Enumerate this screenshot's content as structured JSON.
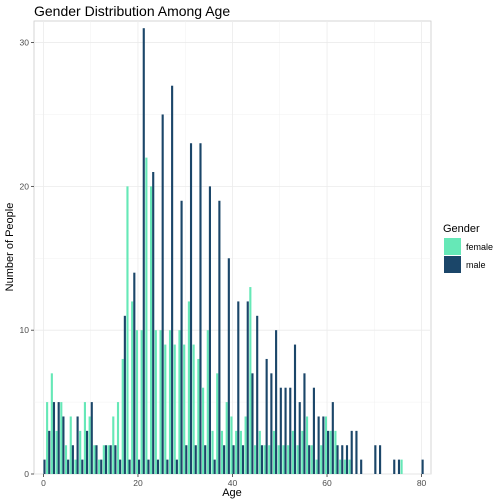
{
  "chart_data": {
    "type": "bar",
    "title": "Gender Distribution Among Age",
    "xlabel": "Age",
    "ylabel": "Number of People",
    "xlim": [
      -2,
      82
    ],
    "ylim": [
      0,
      31.5
    ],
    "x_ticks": [
      "0",
      "20",
      "40",
      "60",
      "80"
    ],
    "y_ticks": [
      "0",
      "10",
      "20",
      "30"
    ],
    "grid": true,
    "legend_position": "right",
    "legend_title": "Gender",
    "series": [
      {
        "name": "female",
        "color": "#66e8b7",
        "points": [
          [
            1,
            5
          ],
          [
            2,
            7
          ],
          [
            3,
            3
          ],
          [
            4,
            5
          ],
          [
            5,
            2
          ],
          [
            6,
            4
          ],
          [
            7,
            1
          ],
          [
            8,
            3
          ],
          [
            9,
            5
          ],
          [
            10,
            4
          ],
          [
            11,
            2
          ],
          [
            12,
            1
          ],
          [
            13,
            2
          ],
          [
            14,
            2
          ],
          [
            15,
            4
          ],
          [
            16,
            5
          ],
          [
            17,
            8
          ],
          [
            18,
            20
          ],
          [
            19,
            12
          ],
          [
            20,
            10
          ],
          [
            21,
            10
          ],
          [
            22,
            22
          ],
          [
            23,
            20
          ],
          [
            24,
            10
          ],
          [
            25,
            10
          ],
          [
            26,
            9
          ],
          [
            27,
            10
          ],
          [
            28,
            9
          ],
          [
            29,
            10
          ],
          [
            30,
            9
          ],
          [
            31,
            12
          ],
          [
            32,
            9
          ],
          [
            33,
            8
          ],
          [
            34,
            6
          ],
          [
            35,
            10
          ],
          [
            36,
            3
          ],
          [
            37,
            7
          ],
          [
            38,
            3
          ],
          [
            39,
            5
          ],
          [
            40,
            4
          ],
          [
            41,
            3
          ],
          [
            42,
            3
          ],
          [
            43,
            4
          ],
          [
            44,
            13
          ],
          [
            45,
            2
          ],
          [
            46,
            3
          ],
          [
            47,
            2
          ],
          [
            48,
            2
          ],
          [
            49,
            3
          ],
          [
            50,
            2
          ],
          [
            51,
            2
          ],
          [
            52,
            2
          ],
          [
            53,
            3
          ],
          [
            54,
            2
          ],
          [
            55,
            3
          ],
          [
            56,
            4
          ],
          [
            57,
            2
          ],
          [
            58,
            1
          ],
          [
            59,
            2
          ],
          [
            60,
            4
          ],
          [
            61,
            3
          ],
          [
            62,
            3
          ],
          [
            63,
            1
          ],
          [
            64,
            1
          ],
          [
            65,
            1
          ],
          [
            76,
            1
          ]
        ]
      },
      {
        "name": "male",
        "color": "#1b4669",
        "points": [
          [
            0,
            1
          ],
          [
            1,
            3
          ],
          [
            2,
            5
          ],
          [
            3,
            5
          ],
          [
            4,
            4
          ],
          [
            5,
            1
          ],
          [
            6,
            2
          ],
          [
            7,
            4
          ],
          [
            8,
            1
          ],
          [
            9,
            3
          ],
          [
            10,
            5
          ],
          [
            11,
            2
          ],
          [
            12,
            1
          ],
          [
            13,
            2
          ],
          [
            14,
            2
          ],
          [
            15,
            2
          ],
          [
            16,
            1
          ],
          [
            17,
            11
          ],
          [
            18,
            1
          ],
          [
            19,
            14
          ],
          [
            20,
            1
          ],
          [
            21,
            31
          ],
          [
            22,
            1
          ],
          [
            23,
            21
          ],
          [
            24,
            1
          ],
          [
            25,
            25
          ],
          [
            26,
            1
          ],
          [
            27,
            27
          ],
          [
            28,
            1
          ],
          [
            29,
            19
          ],
          [
            30,
            2
          ],
          [
            31,
            23
          ],
          [
            32,
            2
          ],
          [
            33,
            23
          ],
          [
            34,
            2
          ],
          [
            35,
            20
          ],
          [
            36,
            1
          ],
          [
            37,
            19
          ],
          [
            38,
            2
          ],
          [
            39,
            15
          ],
          [
            40,
            2
          ],
          [
            41,
            12
          ],
          [
            42,
            2
          ],
          [
            43,
            12
          ],
          [
            44,
            7
          ],
          [
            45,
            11
          ],
          [
            46,
            2
          ],
          [
            47,
            8
          ],
          [
            48,
            7
          ],
          [
            49,
            10
          ],
          [
            50,
            6
          ],
          [
            51,
            6
          ],
          [
            52,
            6
          ],
          [
            53,
            9
          ],
          [
            54,
            5
          ],
          [
            55,
            7
          ],
          [
            56,
            2
          ],
          [
            57,
            6
          ],
          [
            58,
            4
          ],
          [
            59,
            4
          ],
          [
            60,
            3
          ],
          [
            61,
            5
          ],
          [
            62,
            2
          ],
          [
            63,
            2
          ],
          [
            64,
            2
          ],
          [
            65,
            3
          ],
          [
            66,
            3
          ],
          [
            67,
            1
          ],
          [
            70,
            2
          ],
          [
            71,
            2
          ],
          [
            74,
            1
          ],
          [
            75,
            1
          ],
          [
            80,
            1
          ]
        ]
      }
    ]
  }
}
